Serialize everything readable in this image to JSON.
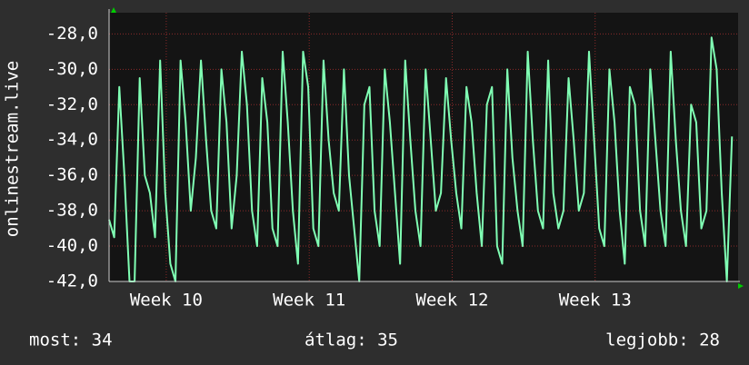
{
  "chart_data": {
    "type": "line",
    "y_label": "onlinestream.live",
    "footer": [
      "most: 34",
      "átlag: 35",
      "legjobb: 28"
    ],
    "xlim": [
      0,
      30.8
    ],
    "xticks": [
      {
        "value": 2.8,
        "label": "Week 10"
      },
      {
        "value": 9.8,
        "label": "Week 11"
      },
      {
        "value": 16.8,
        "label": "Week 12"
      },
      {
        "value": 23.8,
        "label": "Week 13"
      }
    ],
    "ylim": [
      -42,
      -26.8
    ],
    "yticks": [
      {
        "value": -42,
        "label": "-42,0"
      },
      {
        "value": -40,
        "label": "-40,0"
      },
      {
        "value": -38,
        "label": "-38,0"
      },
      {
        "value": -36,
        "label": "-36,0"
      },
      {
        "value": -34,
        "label": "-34,0"
      },
      {
        "value": -32,
        "label": "-32,0"
      },
      {
        "value": -30,
        "label": "-30,0"
      },
      {
        "value": -28,
        "label": "-28,0"
      }
    ],
    "grid": true,
    "series": [
      {
        "color": "#80ffb4",
        "x": [
          0,
          0.25,
          0.5,
          0.75,
          1,
          1.25,
          1.5,
          1.75,
          2,
          2.25,
          2.5,
          2.75,
          3,
          3.25,
          3.5,
          3.75,
          4,
          4.25,
          4.5,
          4.75,
          5,
          5.25,
          5.5,
          5.75,
          6,
          6.25,
          6.5,
          6.75,
          7,
          7.25,
          7.5,
          7.75,
          8,
          8.25,
          8.5,
          8.75,
          9,
          9.25,
          9.5,
          9.75,
          10,
          10.25,
          10.5,
          10.75,
          11,
          11.25,
          11.5,
          11.75,
          12,
          12.25,
          12.5,
          12.75,
          13,
          13.25,
          13.5,
          13.75,
          14,
          14.25,
          14.5,
          14.75,
          15,
          15.25,
          15.5,
          15.75,
          16,
          16.25,
          16.5,
          16.75,
          17,
          17.25,
          17.5,
          17.75,
          18,
          18.25,
          18.5,
          18.75,
          19,
          19.25,
          19.5,
          19.75,
          20,
          20.25,
          20.5,
          20.75,
          21,
          21.25,
          21.5,
          21.75,
          22,
          22.25,
          22.5,
          22.75,
          23,
          23.25,
          23.5,
          23.75,
          24,
          24.25,
          24.5,
          24.75,
          25,
          25.25,
          25.5,
          25.75,
          26,
          26.25,
          26.5,
          26.75,
          27,
          27.25,
          27.5,
          27.75,
          28,
          28.25,
          28.5,
          28.75,
          29,
          29.25,
          29.5,
          29.75,
          30,
          30.25,
          30.5
        ],
        "values": [
          -38.5,
          -39.5,
          -31,
          -36,
          -42,
          -42,
          -30.5,
          -36,
          -37,
          -39.5,
          -29.5,
          -37,
          -41,
          -42,
          -29.5,
          -33,
          -38,
          -35,
          -29.5,
          -34,
          -38,
          -39,
          -30,
          -33,
          -39,
          -36,
          -29,
          -32,
          -38,
          -40,
          -30.5,
          -33,
          -39,
          -40,
          -29,
          -33,
          -38,
          -41,
          -29,
          -31,
          -39,
          -40,
          -29.5,
          -34,
          -37,
          -38,
          -30,
          -36,
          -39,
          -42,
          -32,
          -31,
          -38,
          -40,
          -30,
          -33,
          -37,
          -41,
          -29.5,
          -34,
          -38,
          -40,
          -30,
          -34,
          -38,
          -37,
          -30.5,
          -34,
          -37,
          -39,
          -31,
          -33,
          -37,
          -40,
          -32,
          -31,
          -40,
          -41,
          -30,
          -35,
          -38,
          -40,
          -29,
          -34,
          -38,
          -39,
          -29.5,
          -37,
          -39,
          -38,
          -30.5,
          -34,
          -38,
          -37,
          -29,
          -34,
          -39,
          -40,
          -30,
          -33,
          -38,
          -41,
          -31,
          -32,
          -38,
          -40,
          -30,
          -34,
          -38,
          -40,
          -29,
          -34,
          -38,
          -40,
          -32,
          -33,
          -39,
          -38,
          -28.2,
          -30,
          -37,
          -42,
          -33.8
        ]
      }
    ]
  }
}
